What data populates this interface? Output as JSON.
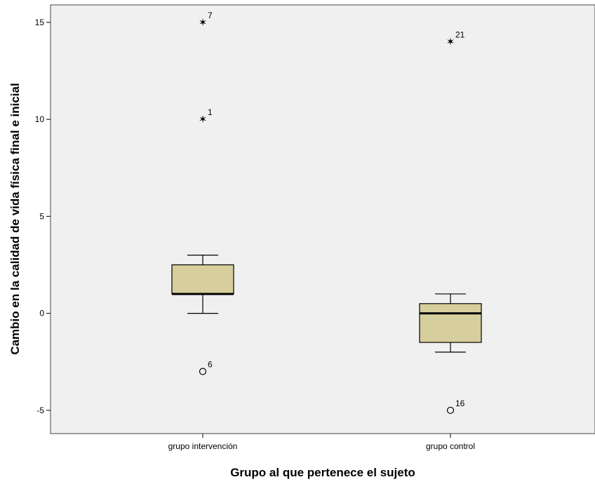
{
  "chart_data": {
    "type": "boxplot",
    "xlabel": "Grupo al que pertenece el sujeto",
    "ylabel": "Cambio en la calidad de vida física final e inicial",
    "ylim": [
      -6.2,
      15.9
    ],
    "yticks": [
      -5,
      0,
      5,
      10,
      15
    ],
    "grid": false,
    "colors": {
      "plot_background": "#F0F0F0",
      "box_fill": "#D6CE9C",
      "stroke": "#000000"
    },
    "categories": [
      "grupo intervención",
      "grupo control"
    ],
    "boxes": [
      {
        "category": "grupo intervención",
        "whisker_low": 0,
        "q1": 1,
        "median": 1,
        "q3": 2.5,
        "whisker_high": 3,
        "outliers": [
          {
            "value": 15,
            "label": "7",
            "marker": "extreme-star"
          },
          {
            "value": 10,
            "label": "1",
            "marker": "extreme-star"
          },
          {
            "value": -3,
            "label": "6",
            "marker": "outlier-circle"
          }
        ]
      },
      {
        "category": "grupo control",
        "whisker_low": -2,
        "q1": -1.5,
        "median": 0,
        "q3": 0.5,
        "whisker_high": 1,
        "outliers": [
          {
            "value": 14,
            "label": "21",
            "marker": "extreme-star"
          },
          {
            "value": -5,
            "label": "16",
            "marker": "outlier-circle"
          }
        ]
      }
    ]
  }
}
